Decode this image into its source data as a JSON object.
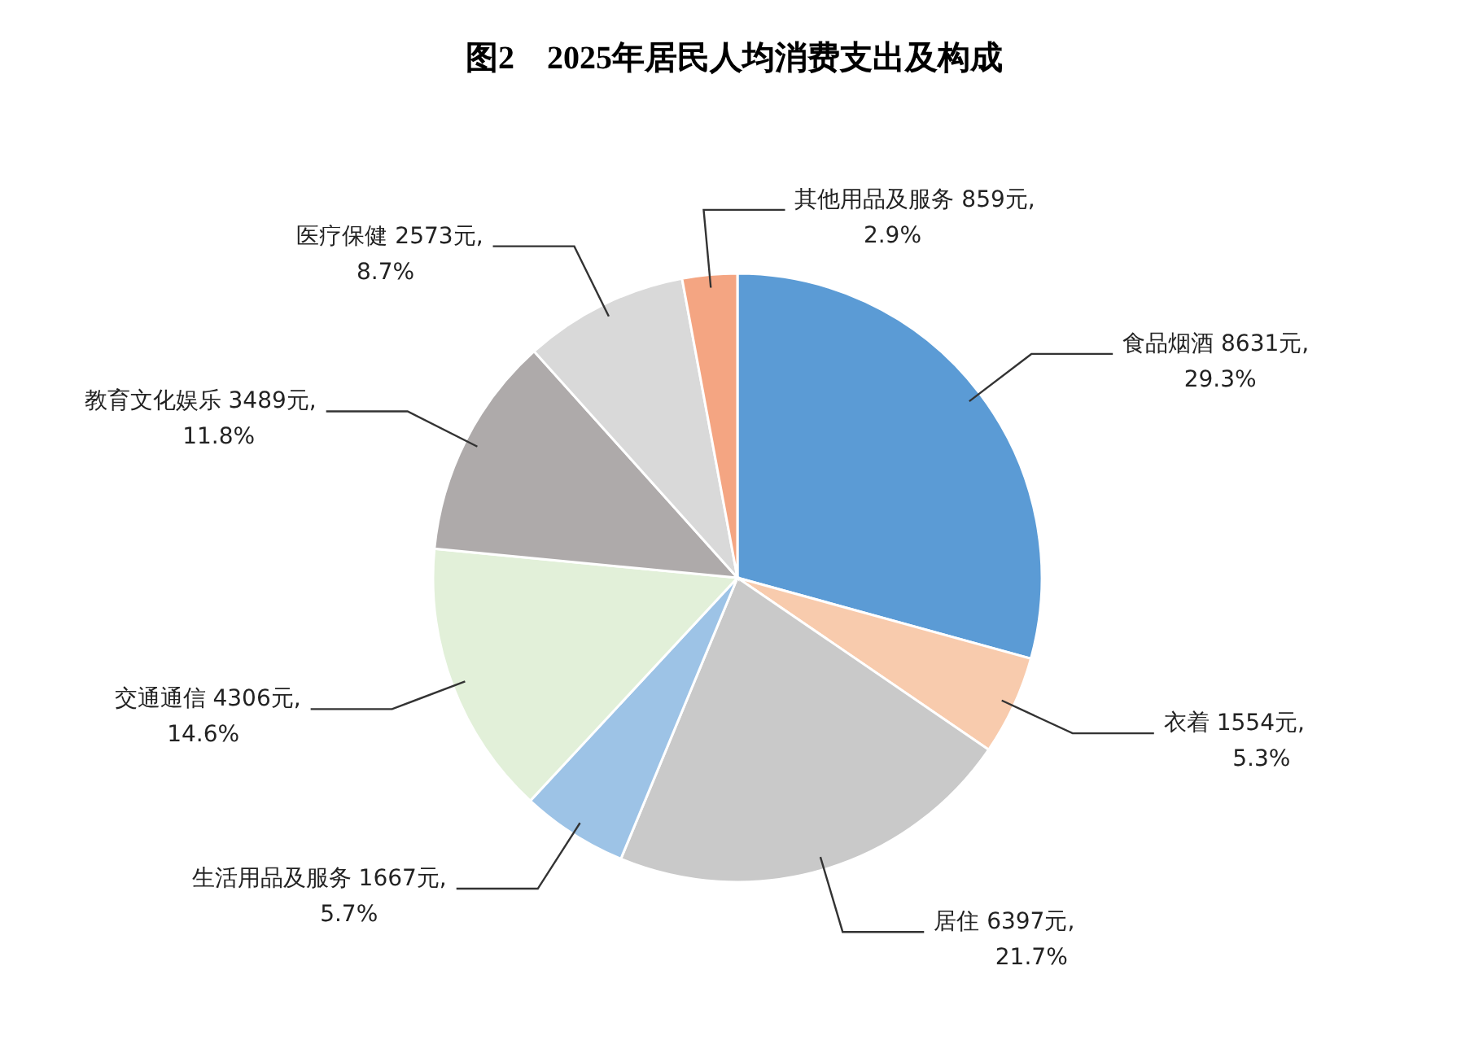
{
  "chart_data": {
    "type": "pie",
    "title": "图2　2025年居民人均消费支出及构成",
    "categories": [
      "食品烟酒",
      "衣着",
      "居住",
      "生活用品及服务",
      "交通通信",
      "教育文化娱乐",
      "医疗保健",
      "其他用品及服务"
    ],
    "values": [
      8631,
      1554,
      6397,
      1667,
      4306,
      3489,
      2573,
      859
    ],
    "value_labels": [
      "8631元,\n29.3%",
      "1554元,\n5.3%",
      "6397元,\n21.7%",
      "1667元,\n5.7%",
      "4306元,\n14.6%",
      "3489元,\n11.8%",
      "2573元,\n8.7%",
      "859元,\n2.9%"
    ],
    "colors": [
      "#5b9bd5",
      "#f8cbad",
      "#c9c9c9",
      "#9dc3e6",
      "#e2f0d9",
      "#aeaaaa",
      "#d9d9d9",
      "#f4a582"
    ],
    "legend": false
  }
}
